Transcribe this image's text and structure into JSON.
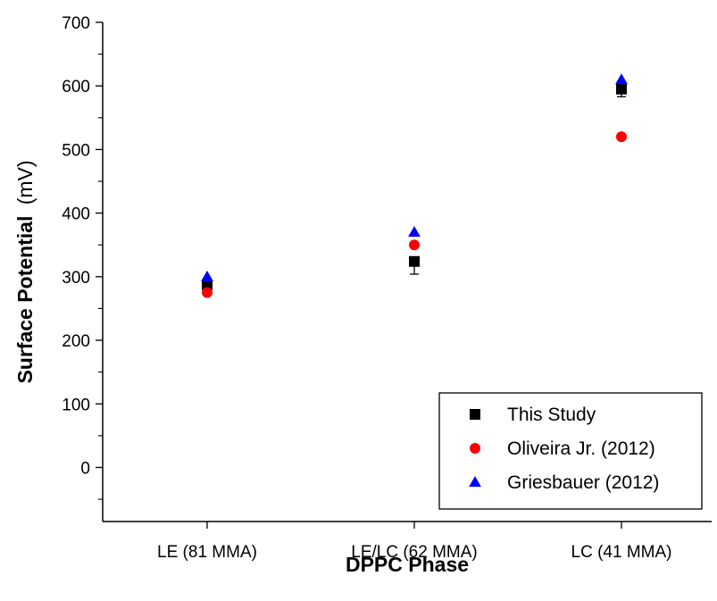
{
  "chart_data": {
    "type": "scatter",
    "categories": [
      "LE (81 MMA)",
      "LE/LC (62 MMA)",
      "LC (41 MMA)"
    ],
    "xlabel": "DPPC Phase",
    "ylabel_bold": "Surface Potential",
    "ylabel_unit": "(mV)",
    "ylim": [
      -85,
      700
    ],
    "yticks": [
      0,
      100,
      200,
      300,
      400,
      500,
      600,
      700
    ],
    "grid": false,
    "legend_position": "bottom-right",
    "series": [
      {
        "name": "This Study",
        "marker": "square",
        "color": "#000000",
        "values": [
          287,
          324,
          595
        ],
        "errors": [
          12,
          20,
          12
        ]
      },
      {
        "name": "Oliveira Jr. (2012)",
        "marker": "circle",
        "color": "#ff0000",
        "values": [
          275,
          350,
          520
        ]
      },
      {
        "name": "Griesbauer (2012)",
        "marker": "triangle",
        "color": "#0000ff",
        "values": [
          300,
          370,
          610
        ]
      }
    ]
  }
}
